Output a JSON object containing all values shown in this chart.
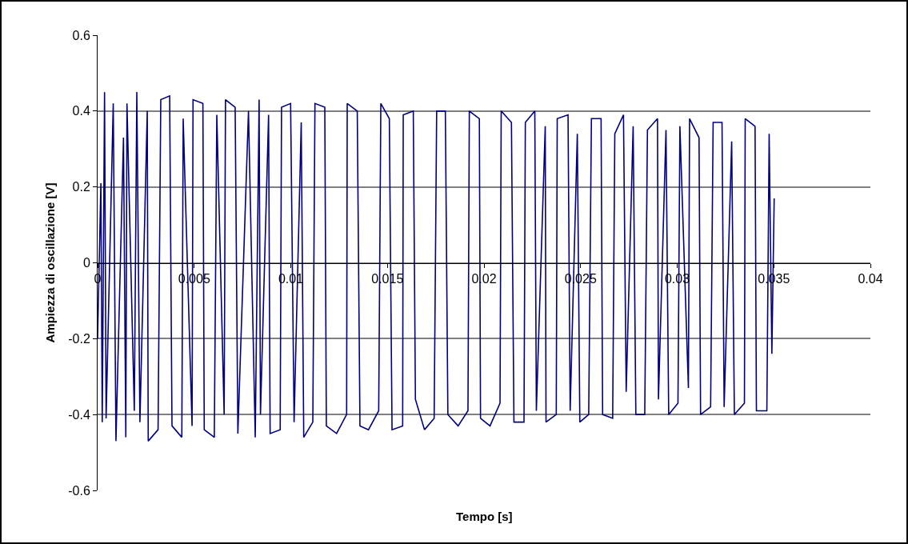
{
  "chart_data": {
    "type": "line",
    "xlabel": "Tempo [s]",
    "ylabel": "Ampiezza di oscillazione [V]",
    "xlim": [
      0,
      0.04
    ],
    "xticks": [
      0,
      0.005,
      0.01,
      0.015,
      0.02,
      0.025,
      0.03,
      0.035,
      0.04
    ],
    "ylim": [
      -0.6,
      0.6
    ],
    "yticks": [
      -0.6,
      -0.4,
      -0.2,
      0,
      0.2,
      0.4,
      0.6
    ],
    "grid": "y",
    "marker": "none",
    "line_style": "solid",
    "series": [
      {
        "color": "#000080",
        "x": [
          0,
          0.00017,
          0.00024,
          0.00036,
          0.00044,
          0.00081,
          0.00095,
          0.00134,
          0.00146,
          0.00152,
          0.0019,
          0.00203,
          0.00219,
          0.00257,
          0.00262,
          0.00313,
          0.00327,
          0.00373,
          0.00385,
          0.00436,
          0.00443,
          0.00489,
          0.00494,
          0.00545,
          0.00552,
          0.00604,
          0.00617,
          0.00655,
          0.00662,
          0.00712,
          0.00726,
          0.00781,
          0.00816,
          0.00836,
          0.00843,
          0.00885,
          0.00893,
          0.00945,
          0.00952,
          0.00999,
          0.01017,
          0.01054,
          0.01067,
          0.01114,
          0.01125,
          0.01176,
          0.01184,
          0.01237,
          0.01289,
          0.01292,
          0.01344,
          0.01358,
          0.01402,
          0.01455,
          0.01466,
          0.0151,
          0.01524,
          0.01579,
          0.01582,
          0.01634,
          0.01645,
          0.01692,
          0.01742,
          0.01755,
          0.018,
          0.01813,
          0.01866,
          0.01917,
          0.01924,
          0.01976,
          0.01982,
          0.02031,
          0.02083,
          0.02089,
          0.02142,
          0.02155,
          0.02207,
          0.02214,
          0.02263,
          0.02271,
          0.02317,
          0.02321,
          0.02374,
          0.02379,
          0.02435,
          0.02446,
          0.02483,
          0.02496,
          0.02542,
          0.02556,
          0.02606,
          0.02614,
          0.02666,
          0.02677,
          0.02722,
          0.02736,
          0.02772,
          0.02786,
          0.02832,
          0.02846,
          0.02898,
          0.02903,
          0.02942,
          0.02956,
          0.03004,
          0.03014,
          0.03058,
          0.03064,
          0.03113,
          0.03121,
          0.03173,
          0.03186,
          0.03232,
          0.03243,
          0.03282,
          0.03296,
          0.03348,
          0.03352,
          0.03403,
          0.0341,
          0.03464,
          0.03476,
          0.0349,
          0.03502
        ],
        "values": [
          -0.2,
          0.21,
          -0.42,
          0.45,
          -0.41,
          0.42,
          -0.47,
          0.33,
          -0.46,
          0.42,
          -0.39,
          0.45,
          -0.42,
          0.4,
          -0.47,
          -0.44,
          0.43,
          0.44,
          -0.43,
          -0.46,
          0.38,
          -0.43,
          0.43,
          0.42,
          -0.44,
          -0.46,
          0.39,
          -0.4,
          0.43,
          0.41,
          -0.45,
          0.4,
          -0.46,
          0.43,
          -0.4,
          0.39,
          -0.45,
          -0.44,
          0.41,
          0.42,
          -0.42,
          0.37,
          -0.46,
          -0.42,
          0.42,
          0.41,
          -0.43,
          -0.45,
          -0.4,
          0.42,
          0.4,
          -0.43,
          -0.44,
          -0.39,
          0.42,
          0.38,
          -0.44,
          -0.43,
          0.39,
          0.4,
          -0.36,
          -0.44,
          -0.41,
          0.4,
          0.4,
          -0.4,
          -0.43,
          -0.39,
          0.4,
          0.38,
          -0.41,
          -0.43,
          -0.37,
          0.4,
          0.37,
          -0.42,
          -0.42,
          0.37,
          0.4,
          -0.39,
          0.36,
          -0.42,
          -0.4,
          0.38,
          0.39,
          -0.39,
          0.34,
          -0.42,
          -0.4,
          0.38,
          0.38,
          -0.4,
          -0.41,
          0.34,
          0.39,
          -0.34,
          0.36,
          -0.4,
          -0.4,
          0.35,
          0.38,
          -0.36,
          0.35,
          -0.4,
          -0.37,
          0.36,
          -0.33,
          0.38,
          0.33,
          -0.4,
          -0.38,
          0.37,
          0.37,
          -0.38,
          0.32,
          -0.4,
          -0.37,
          0.38,
          0.36,
          -0.39,
          -0.39,
          0.34,
          -0.24,
          0.17
        ]
      }
    ]
  }
}
